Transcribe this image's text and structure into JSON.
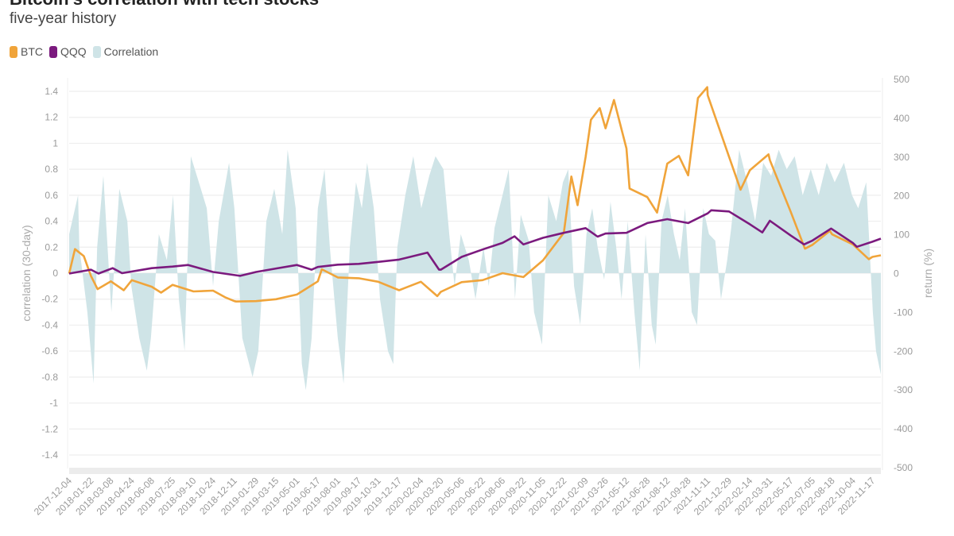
{
  "title": "Bitcoin's correlation with tech stocks",
  "subtitle": "five-year history",
  "legend": [
    {
      "label": "BTC",
      "color": "#f0a43a"
    },
    {
      "label": "QQQ",
      "color": "#7b1a7e"
    },
    {
      "label": "Correlation",
      "color": "#cfe4e7"
    }
  ],
  "chart_data": {
    "type": "line+area",
    "title": "Bitcoin's correlation with tech stocks",
    "subtitle": "five-year history",
    "ylabel_left": "correlation (30-day)",
    "ylabel_right": "return (%)",
    "ylim_left": [
      -1.4,
      1.4
    ],
    "ylim_right": [
      -500,
      500
    ],
    "yticks_left": [
      "1.4",
      "1.2",
      "1",
      "0.8",
      "0.6",
      "0.4",
      "0.2",
      "0",
      "-0.2",
      "-0.4",
      "-0.6",
      "-0.8",
      "-1",
      "-1.2",
      "-1.4"
    ],
    "yticks_right": [
      "500",
      "400",
      "300",
      "200",
      "100",
      "0",
      "-100",
      "-200",
      "-300",
      "-400",
      "-500"
    ],
    "xticks": [
      "2017-12-04",
      "2018-01-22",
      "2018-03-08",
      "2018-04-24",
      "2018-06-08",
      "2018-07-25",
      "2018-09-10",
      "2018-10-24",
      "2018-12-11",
      "2019-01-29",
      "2019-03-15",
      "2019-05-01",
      "2019-06-17",
      "2019-08-01",
      "2019-09-17",
      "2019-10-31",
      "2019-12-17",
      "2020-02-04",
      "2020-03-20",
      "2020-05-06",
      "2020-06-22",
      "2020-08-06",
      "2020-09-22",
      "2020-11-05",
      "2020-12-22",
      "2021-02-09",
      "2021-03-26",
      "2021-05-12",
      "2021-06-28",
      "2021-08-12",
      "2021-09-28",
      "2021-11-11",
      "2021-12-29",
      "2022-02-14",
      "2022-03-31",
      "2022-05-17",
      "2022-07-05",
      "2022-08-18",
      "2022-10-04",
      "2022-11-17"
    ],
    "grid": true,
    "legend_position": "top-left",
    "series": [
      {
        "name": "BTC",
        "axis": "right",
        "kind": "line",
        "color": "#f0a43a",
        "points": [
          [
            "2017-12-04",
            0
          ],
          [
            "2017-12-17",
            63
          ],
          [
            "2018-01-06",
            45
          ],
          [
            "2018-01-22",
            -6
          ],
          [
            "2018-02-06",
            -40
          ],
          [
            "2018-03-08",
            -20
          ],
          [
            "2018-04-06",
            -43
          ],
          [
            "2018-04-24",
            -17
          ],
          [
            "2018-06-08",
            -34
          ],
          [
            "2018-06-29",
            -49
          ],
          [
            "2018-07-25",
            -29
          ],
          [
            "2018-09-10",
            -46
          ],
          [
            "2018-10-24",
            -44
          ],
          [
            "2018-11-20",
            -61
          ],
          [
            "2018-12-11",
            -71
          ],
          [
            "2018-12-15",
            -72
          ],
          [
            "2019-01-29",
            -71
          ],
          [
            "2019-03-15",
            -66
          ],
          [
            "2019-05-01",
            -54
          ],
          [
            "2019-06-17",
            -20
          ],
          [
            "2019-06-26",
            11
          ],
          [
            "2019-08-01",
            -10
          ],
          [
            "2019-09-17",
            -12
          ],
          [
            "2019-10-31",
            -21
          ],
          [
            "2019-12-17",
            -43
          ],
          [
            "2020-02-04",
            -21
          ],
          [
            "2020-03-12",
            -58
          ],
          [
            "2020-03-20",
            -47
          ],
          [
            "2020-05-06",
            -22
          ],
          [
            "2020-06-22",
            -17
          ],
          [
            "2020-08-06",
            1
          ],
          [
            "2020-09-22",
            -9
          ],
          [
            "2020-11-05",
            34
          ],
          [
            "2020-12-22",
            105
          ],
          [
            "2021-01-08",
            250
          ],
          [
            "2021-01-22",
            176
          ],
          [
            "2021-02-09",
            300
          ],
          [
            "2021-02-21",
            396
          ],
          [
            "2021-03-13",
            426
          ],
          [
            "2021-03-26",
            374
          ],
          [
            "2021-04-14",
            447
          ],
          [
            "2021-05-12",
            322
          ],
          [
            "2021-05-19",
            219
          ],
          [
            "2021-06-28",
            197
          ],
          [
            "2021-07-20",
            157
          ],
          [
            "2021-08-12",
            283
          ],
          [
            "2021-09-07",
            303
          ],
          [
            "2021-09-28",
            253
          ],
          [
            "2021-10-20",
            452
          ],
          [
            "2021-11-10",
            480
          ],
          [
            "2021-11-11",
            459
          ],
          [
            "2021-12-29",
            301
          ],
          [
            "2022-01-24",
            216
          ],
          [
            "2022-02-14",
            266
          ],
          [
            "2022-03-28",
            307
          ],
          [
            "2022-03-31",
            292
          ],
          [
            "2022-05-17",
            159
          ],
          [
            "2022-06-18",
            64
          ],
          [
            "2022-07-05",
            74
          ],
          [
            "2022-08-13",
            110
          ],
          [
            "2022-08-18",
            101
          ],
          [
            "2022-10-04",
            75
          ],
          [
            "2022-11-09",
            37
          ],
          [
            "2022-11-17",
            43
          ],
          [
            "2022-12-06",
            47
          ]
        ]
      },
      {
        "name": "QQQ",
        "axis": "right",
        "kind": "line",
        "color": "#7b1a7e",
        "points": [
          [
            "2017-12-04",
            0
          ],
          [
            "2018-01-22",
            10
          ],
          [
            "2018-02-08",
            0
          ],
          [
            "2018-03-12",
            14
          ],
          [
            "2018-04-02",
            1
          ],
          [
            "2018-06-08",
            14
          ],
          [
            "2018-07-25",
            18
          ],
          [
            "2018-08-29",
            22
          ],
          [
            "2018-10-24",
            4
          ],
          [
            "2018-12-24",
            -6
          ],
          [
            "2019-01-29",
            4
          ],
          [
            "2019-03-15",
            13
          ],
          [
            "2019-05-01",
            22
          ],
          [
            "2019-06-03",
            10
          ],
          [
            "2019-06-17",
            17
          ],
          [
            "2019-08-01",
            23
          ],
          [
            "2019-09-17",
            25
          ],
          [
            "2019-10-31",
            30
          ],
          [
            "2019-12-17",
            36
          ],
          [
            "2020-02-19",
            54
          ],
          [
            "2020-03-16",
            10
          ],
          [
            "2020-03-20",
            10
          ],
          [
            "2020-05-06",
            43
          ],
          [
            "2020-06-22",
            62
          ],
          [
            "2020-08-06",
            79
          ],
          [
            "2020-09-02",
            96
          ],
          [
            "2020-09-22",
            75
          ],
          [
            "2020-11-05",
            92
          ],
          [
            "2020-12-22",
            105
          ],
          [
            "2021-02-09",
            117
          ],
          [
            "2021-03-08",
            95
          ],
          [
            "2021-03-26",
            103
          ],
          [
            "2021-05-12",
            105
          ],
          [
            "2021-06-28",
            130
          ],
          [
            "2021-08-12",
            140
          ],
          [
            "2021-09-28",
            130
          ],
          [
            "2021-11-11",
            155
          ],
          [
            "2021-11-19",
            163
          ],
          [
            "2021-12-29",
            160
          ],
          [
            "2022-02-14",
            127
          ],
          [
            "2022-03-14",
            106
          ],
          [
            "2022-03-31",
            136
          ],
          [
            "2022-05-17",
            98
          ],
          [
            "2022-06-16",
            75
          ],
          [
            "2022-07-05",
            85
          ],
          [
            "2022-08-16",
            116
          ],
          [
            "2022-10-04",
            79
          ],
          [
            "2022-10-13",
            69
          ],
          [
            "2022-11-17",
            82
          ],
          [
            "2022-12-06",
            90
          ]
        ]
      },
      {
        "name": "Correlation",
        "axis": "left",
        "kind": "area",
        "color": "#cfe4e7",
        "points": [
          [
            "2017-12-04",
            0.3
          ],
          [
            "2017-12-24",
            0.6
          ],
          [
            "2017-12-27",
            0.2
          ],
          [
            "2018-01-14",
            -0.3
          ],
          [
            "2018-01-28",
            -0.85
          ],
          [
            "2018-02-05",
            0.2
          ],
          [
            "2018-02-19",
            0.75
          ],
          [
            "2018-03-09",
            -0.3
          ],
          [
            "2018-03-27",
            0.65
          ],
          [
            "2018-04-14",
            0.4
          ],
          [
            "2018-04-23",
            -0.1
          ],
          [
            "2018-05-11",
            -0.5
          ],
          [
            "2018-05-28",
            -0.75
          ],
          [
            "2018-06-06",
            -0.5
          ],
          [
            "2018-06-24",
            0.3
          ],
          [
            "2018-07-12",
            0.1
          ],
          [
            "2018-07-26",
            0.6
          ],
          [
            "2018-08-08",
            -0.2
          ],
          [
            "2018-08-21",
            -0.6
          ],
          [
            "2018-09-04",
            0.9
          ],
          [
            "2018-09-22",
            0.7
          ],
          [
            "2018-10-10",
            0.5
          ],
          [
            "2018-10-24",
            -0.1
          ],
          [
            "2018-11-06",
            0.4
          ],
          [
            "2018-11-29",
            0.85
          ],
          [
            "2018-12-11",
            0.5
          ],
          [
            "2018-12-29",
            -0.5
          ],
          [
            "2019-01-21",
            -0.8
          ],
          [
            "2019-02-03",
            -0.6
          ],
          [
            "2019-02-21",
            0.4
          ],
          [
            "2019-03-11",
            0.65
          ],
          [
            "2019-03-29",
            0.3
          ],
          [
            "2019-04-10",
            0.95
          ],
          [
            "2019-04-28",
            0.5
          ],
          [
            "2019-05-12",
            -0.7
          ],
          [
            "2019-05-21",
            -0.9
          ],
          [
            "2019-06-03",
            -0.5
          ],
          [
            "2019-06-17",
            0.5
          ],
          [
            "2019-07-02",
            0.8
          ],
          [
            "2019-07-14",
            0.2
          ],
          [
            "2019-08-01",
            -0.5
          ],
          [
            "2019-08-14",
            -0.85
          ],
          [
            "2019-08-28",
            0.2
          ],
          [
            "2019-09-11",
            0.7
          ],
          [
            "2019-09-24",
            0.5
          ],
          [
            "2019-10-06",
            0.85
          ],
          [
            "2019-10-21",
            0.5
          ],
          [
            "2019-11-04",
            -0.2
          ],
          [
            "2019-11-22",
            -0.6
          ],
          [
            "2019-12-04",
            -0.7
          ],
          [
            "2019-12-13",
            0.2
          ],
          [
            "2019-12-31",
            0.6
          ],
          [
            "2020-01-18",
            0.9
          ],
          [
            "2020-02-05",
            0.5
          ],
          [
            "2020-02-23",
            0.75
          ],
          [
            "2020-03-08",
            0.9
          ],
          [
            "2020-03-26",
            0.8
          ],
          [
            "2020-04-08",
            0.3
          ],
          [
            "2020-04-20",
            -0.1
          ],
          [
            "2020-05-04",
            0.3
          ],
          [
            "2020-05-22",
            0.1
          ],
          [
            "2020-06-06",
            -0.2
          ],
          [
            "2020-06-24",
            0.2
          ],
          [
            "2020-07-06",
            -0.1
          ],
          [
            "2020-07-19",
            0.35
          ],
          [
            "2020-08-06",
            0.6
          ],
          [
            "2020-08-20",
            0.8
          ],
          [
            "2020-09-03",
            -0.2
          ],
          [
            "2020-09-16",
            0.45
          ],
          [
            "2020-10-04",
            0.25
          ],
          [
            "2020-10-16",
            -0.3
          ],
          [
            "2020-11-03",
            -0.55
          ],
          [
            "2020-11-17",
            0.6
          ],
          [
            "2020-12-05",
            0.4
          ],
          [
            "2020-12-20",
            0.7
          ],
          [
            "2021-01-01",
            0.8
          ],
          [
            "2021-01-14",
            -0.1
          ],
          [
            "2021-01-28",
            -0.4
          ],
          [
            "2021-02-11",
            0.3
          ],
          [
            "2021-02-24",
            0.5
          ],
          [
            "2021-03-08",
            0.2
          ],
          [
            "2021-03-23",
            -0.05
          ],
          [
            "2021-04-06",
            0.55
          ],
          [
            "2021-04-19",
            0.2
          ],
          [
            "2021-05-01",
            -0.2
          ],
          [
            "2021-05-15",
            0.4
          ],
          [
            "2021-05-30",
            -0.3
          ],
          [
            "2021-06-11",
            -0.75
          ],
          [
            "2021-06-24",
            0.3
          ],
          [
            "2021-07-08",
            -0.4
          ],
          [
            "2021-07-17",
            -0.55
          ],
          [
            "2021-07-30",
            0.4
          ],
          [
            "2021-08-13",
            0.6
          ],
          [
            "2021-08-27",
            0.3
          ],
          [
            "2021-09-09",
            0.1
          ],
          [
            "2021-09-21",
            0.5
          ],
          [
            "2021-10-06",
            -0.3
          ],
          [
            "2021-10-18",
            -0.4
          ],
          [
            "2021-11-01",
            0.5
          ],
          [
            "2021-11-14",
            0.3
          ],
          [
            "2021-11-28",
            0.25
          ],
          [
            "2021-12-11",
            -0.2
          ],
          [
            "2021-12-25",
            0.1
          ],
          [
            "2022-01-03",
            0.35
          ],
          [
            "2022-01-21",
            0.95
          ],
          [
            "2022-02-08",
            0.7
          ],
          [
            "2022-02-26",
            0.4
          ],
          [
            "2022-03-16",
            0.85
          ],
          [
            "2022-04-03",
            0.75
          ],
          [
            "2022-04-20",
            0.95
          ],
          [
            "2022-05-08",
            0.8
          ],
          [
            "2022-05-26",
            0.9
          ],
          [
            "2022-06-13",
            0.6
          ],
          [
            "2022-07-01",
            0.8
          ],
          [
            "2022-07-19",
            0.6
          ],
          [
            "2022-08-06",
            0.85
          ],
          [
            "2022-08-24",
            0.7
          ],
          [
            "2022-09-14",
            0.85
          ],
          [
            "2022-10-02",
            0.6
          ],
          [
            "2022-10-16",
            0.5
          ],
          [
            "2022-11-03",
            0.7
          ],
          [
            "2022-11-18",
            -0.3
          ],
          [
            "2022-11-25",
            -0.6
          ],
          [
            "2022-12-06",
            -0.78
          ]
        ]
      }
    ]
  }
}
